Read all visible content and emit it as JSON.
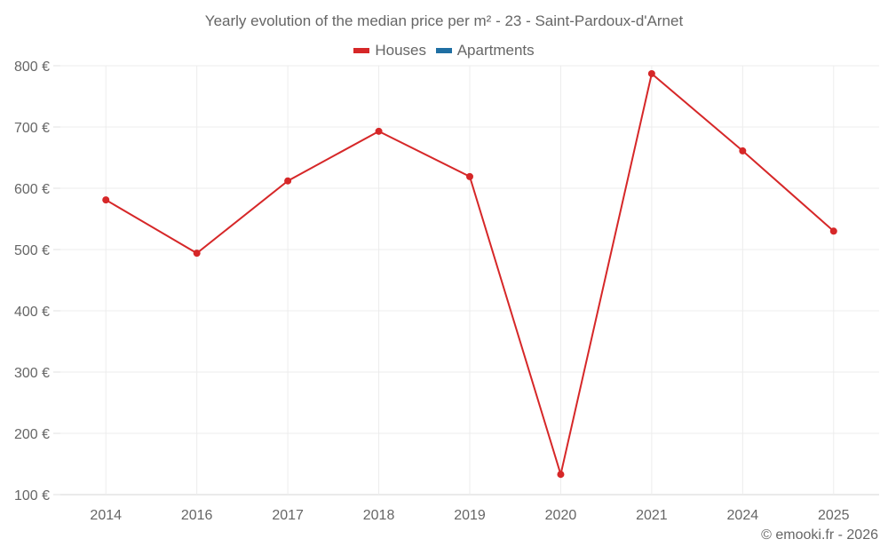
{
  "chart_data": {
    "type": "line",
    "title": "Yearly evolution of the median price per m² - 23 - Saint-Pardoux-d'Arnet",
    "xlabel": "",
    "ylabel": "",
    "categories": [
      "2014",
      "2016",
      "2017",
      "2018",
      "2019",
      "2020",
      "2021",
      "2024",
      "2025"
    ],
    "series": [
      {
        "name": "Houses",
        "color": "#d62728",
        "values": [
          581,
          494,
          612,
          693,
          619,
          133,
          787,
          661,
          530
        ]
      },
      {
        "name": "Apartments",
        "color": "#1f6fa3",
        "values": []
      }
    ],
    "ylim": [
      100,
      800
    ],
    "yticks": [
      100,
      200,
      300,
      400,
      500,
      600,
      700,
      800
    ],
    "ytick_labels": [
      "100 €",
      "200 €",
      "300 €",
      "400 €",
      "500 €",
      "600 €",
      "700 €",
      "800 €"
    ],
    "grid": true,
    "legend_position": "top"
  },
  "header": {
    "title": "Yearly evolution of the median price per m² - 23 - Saint-Pardoux-d'Arnet"
  },
  "legend": {
    "items": [
      {
        "label": "Houses",
        "color": "#d62728"
      },
      {
        "label": "Apartments",
        "color": "#1f6fa3"
      }
    ]
  },
  "footer": {
    "credit": "© emooki.fr - 2026"
  }
}
